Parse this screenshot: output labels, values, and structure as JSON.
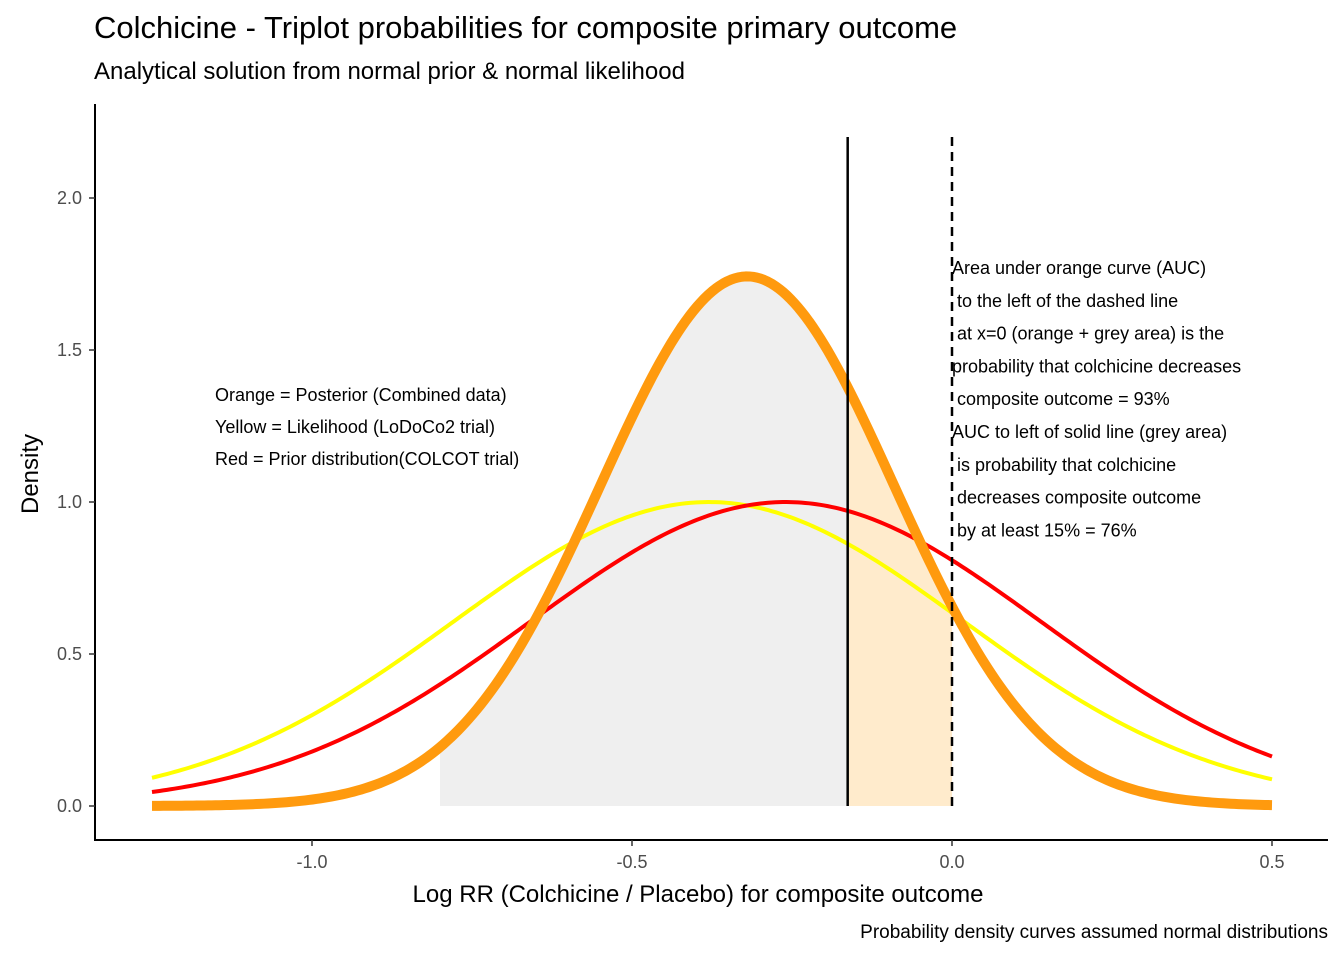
{
  "title": "Colchicine - Triplot probabilities for composite primary outcome",
  "subtitle": "Analytical solution from normal prior & normal likelihood",
  "caption": "Probability density curves assumed normal distributions",
  "colors": {
    "posterior": "#FF9A0E",
    "likelihood": "#FFFF00",
    "prior": "#FF0000",
    "grey_area": "#EFEFEF",
    "orange_area": "#FFEBCC"
  },
  "chart_data": {
    "type": "line",
    "xlabel": "Log RR (Colchicine / Placebo) for composite outcome",
    "ylabel": "Density",
    "xlim": [
      -1.25,
      0.5
    ],
    "ylim": [
      0,
      2.2
    ],
    "x_ticks": [
      "-1.0",
      "-0.5",
      "0.0",
      "0.5"
    ],
    "y_ticks": [
      "0.0",
      "0.5",
      "1.0",
      "1.5",
      "2.0"
    ],
    "grid": false,
    "series": [
      {
        "name": "Likelihood (LoDoCo2 trial)",
        "color": "#FFFF00",
        "dist": "normal",
        "mean": -0.38,
        "sd": 0.399
      },
      {
        "name": "Prior distribution(COLCOT trial)",
        "color": "#FF0000",
        "dist": "normal",
        "mean": -0.26,
        "sd": 0.399
      },
      {
        "name": "Posterior (Combined data)",
        "color": "#FF9A0E",
        "dist": "normal",
        "mean": -0.32,
        "sd": 0.229
      }
    ],
    "reference_lines": [
      {
        "x": -0.163,
        "style": "solid"
      },
      {
        "x": 0.0,
        "style": "dashed"
      }
    ],
    "shaded_areas": [
      {
        "from": -0.8,
        "to": -0.163,
        "fill": "grey"
      },
      {
        "from": -0.163,
        "to": 0.0,
        "fill": "orange"
      }
    ],
    "annotations": {
      "legend_lines": [
        "Orange = Posterior (Combined data)",
        "Yellow = Likelihood (LoDoCo2 trial)",
        "Red = Prior distribution(COLCOT trial)"
      ],
      "note_lines": [
        "Area under orange curve (AUC)",
        " to the left of the dashed line",
        " at x=0 (orange + grey area) is the",
        "probability that colchicine decreases",
        " composite outcome = 93%",
        "AUC to left of solid line (grey area)",
        " is probability that colchicine",
        " decreases composite outcome",
        " by at least 15% = 76%"
      ]
    }
  }
}
